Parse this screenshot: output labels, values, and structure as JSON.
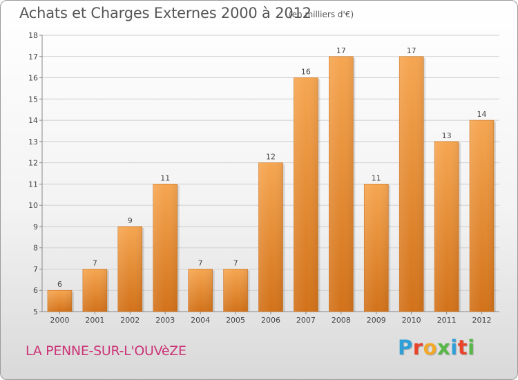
{
  "header": {
    "title": "Achats et Charges Externes 2000 à 2012",
    "subtitle": "(en milliers d'€)"
  },
  "footer": {
    "location": "LA PENNE-SUR-L'OUVèZE",
    "brand": "Proxiti"
  },
  "colors": {
    "bar_top": "#f6a651",
    "bar_bottom": "#d2721a",
    "title": "#555555",
    "location": "#cc3377",
    "brand_letters": [
      "#2f9fd8",
      "#e9442a",
      "#f2a92a",
      "#57b847",
      "#2f9fd8",
      "#e9442a",
      "#57b847"
    ]
  },
  "chart_data": {
    "type": "bar",
    "categories": [
      "2000",
      "2001",
      "2002",
      "2003",
      "2004",
      "2005",
      "2006",
      "2007",
      "2008",
      "2009",
      "2010",
      "2011",
      "2012"
    ],
    "values": [
      6,
      7,
      9,
      11,
      7,
      7,
      12,
      16,
      17,
      11,
      17,
      13,
      14
    ],
    "data_labels": [
      "6",
      "7",
      "9",
      "11",
      "7",
      "7",
      "12",
      "16",
      "17",
      "11",
      "17",
      "13",
      "14"
    ],
    "title": "Achats et Charges Externes 2000 à 2012",
    "subtitle": "(en milliers d'€)",
    "xlabel": "",
    "ylabel": "",
    "ylim": [
      5,
      18
    ],
    "yticks": [
      "5",
      "6",
      "7",
      "8",
      "9",
      "10",
      "11",
      "12",
      "13",
      "14",
      "15",
      "16",
      "17",
      "18"
    ],
    "grid": true
  }
}
